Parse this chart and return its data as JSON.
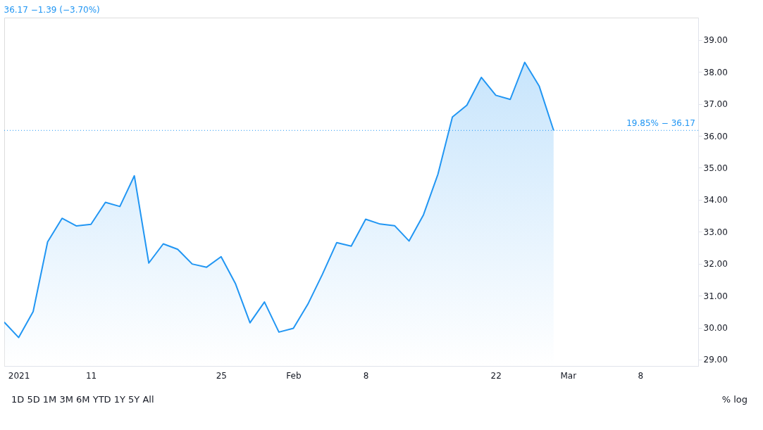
{
  "chart_data": {
    "type": "area",
    "title": "36.17 −1.39 (−3.70%)",
    "categories": [
      null,
      "2021",
      null,
      null,
      null,
      null,
      "11",
      null,
      null,
      null,
      null,
      null,
      null,
      null,
      null,
      "25",
      null,
      null,
      null,
      null,
      "Feb",
      null,
      null,
      null,
      null,
      "8",
      null,
      null,
      null,
      null,
      null,
      null,
      null,
      null,
      "22",
      null,
      null,
      null,
      null,
      "Mar",
      null,
      null,
      null,
      null,
      "8",
      null,
      null,
      null,
      null
    ],
    "series": [
      {
        "color": "#2196f3",
        "values": [
          30.17,
          29.69,
          30.5,
          32.68,
          33.42,
          33.18,
          33.23,
          33.92,
          33.79,
          34.75,
          32.02,
          32.62,
          32.45,
          31.99,
          31.89,
          32.22,
          31.37,
          30.15,
          30.8,
          29.86,
          29.98,
          30.73,
          31.66,
          32.66,
          32.55,
          33.39,
          33.24,
          33.19,
          32.71,
          33.53,
          34.8,
          36.59,
          36.96,
          37.83,
          37.27,
          37.14,
          38.3,
          37.56,
          36.17,
          null,
          null,
          null,
          null,
          null,
          null,
          null,
          null,
          null,
          null
        ]
      }
    ],
    "ylim": [
      28.8,
      39.7
    ],
    "yticks": [
      {
        "value": 29,
        "label": "29.00"
      },
      {
        "value": 30,
        "label": "30.00"
      },
      {
        "value": 31,
        "label": "31.00"
      },
      {
        "value": 32,
        "label": "32.00"
      },
      {
        "value": 33,
        "label": "33.00"
      },
      {
        "value": 34,
        "label": "34.00"
      },
      {
        "value": 35,
        "label": "35.00"
      },
      {
        "value": 36,
        "label": "36.00"
      },
      {
        "value": 37,
        "label": "37.00"
      },
      {
        "value": 38,
        "label": "38.00"
      },
      {
        "value": 39,
        "label": "39.00"
      }
    ],
    "ref_lines": [
      {
        "axis": "y",
        "value": 36.17,
        "label": "19.85% − 36.17",
        "color": "#2196f3",
        "line_style": "dotted"
      }
    ],
    "annotations": [
      "1D 5D 1M 3M 6M YTD 1Y 5Y All",
      "% log"
    ],
    "grid": false,
    "line_style": "solid",
    "marker": "none"
  }
}
